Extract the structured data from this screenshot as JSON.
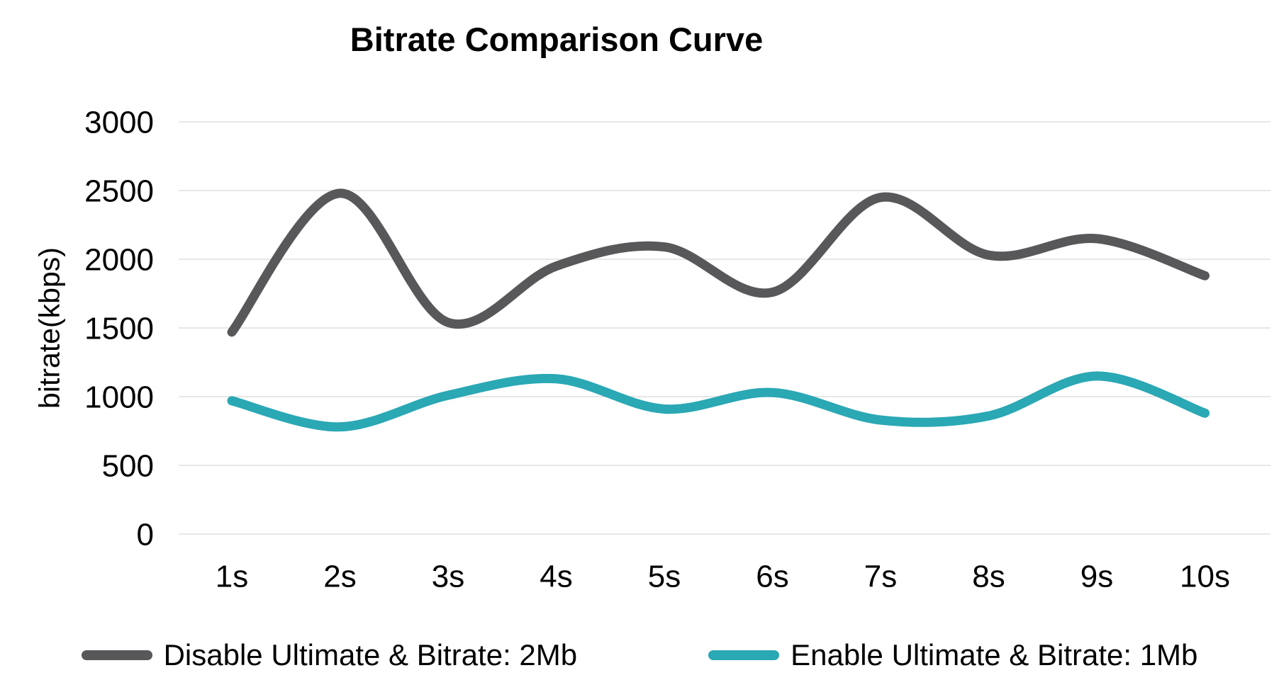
{
  "title": "Bitrate Comparison Curve",
  "chart_data": {
    "type": "line",
    "title": "Bitrate Comparison Curve",
    "xlabel": "",
    "ylabel": "bitrate(kbps)",
    "categories": [
      "1s",
      "2s",
      "3s",
      "4s",
      "5s",
      "6s",
      "7s",
      "8s",
      "9s",
      "10s"
    ],
    "series": [
      {
        "name": "Disable Ultimate & Bitrate: 2Mb",
        "color": "#58585a",
        "values": [
          1470,
          2480,
          1540,
          1950,
          2090,
          1760,
          2450,
          2030,
          2150,
          1880
        ]
      },
      {
        "name": "Enable Ultimate & Bitrate: 1Mb",
        "color": "#2aa8b4",
        "values": [
          970,
          780,
          1010,
          1130,
          910,
          1030,
          830,
          860,
          1150,
          880
        ]
      }
    ],
    "ylim": [
      0,
      3000
    ],
    "yticks": [
      0,
      500,
      1000,
      1500,
      2000,
      2500,
      3000
    ],
    "grid": true,
    "legend_position": "bottom"
  },
  "colors": {
    "grid": "#e7e7e7",
    "text": "#000000",
    "background": "#ffffff"
  }
}
